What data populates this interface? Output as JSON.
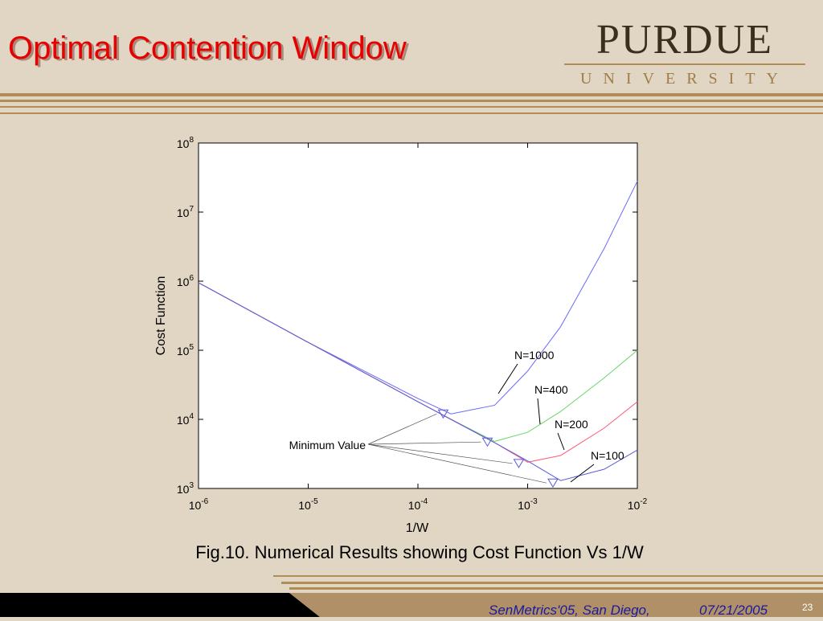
{
  "slide": {
    "title": "Optimal Contention Window",
    "logo": "PURDUE",
    "logo_sub": "UNIVERSITY",
    "footer": "SenMetrics'05, San Diego,",
    "date": "07/21/2005",
    "page": "23"
  },
  "chart_data": {
    "type": "line",
    "xlabel": "1/W",
    "ylabel": "Cost Function",
    "caption": "Fig.10. Numerical Results showing Cost Function Vs 1/W",
    "xscale": "log",
    "yscale": "log",
    "xlim": [
      1e-06,
      0.01
    ],
    "ylim": [
      1000,
      100000000
    ],
    "xticks": [
      {
        "value": 1e-06,
        "label": "10^-6"
      },
      {
        "value": 1e-05,
        "label": "10^-5"
      },
      {
        "value": 0.0001,
        "label": "10^-4"
      },
      {
        "value": 0.001,
        "label": "10^-3"
      },
      {
        "value": 0.01,
        "label": "10^-2"
      }
    ],
    "yticks": [
      {
        "value": 1000,
        "label": "10^3"
      },
      {
        "value": 10000,
        "label": "10^4"
      },
      {
        "value": 100000,
        "label": "10^5"
      },
      {
        "value": 1000000,
        "label": "10^6"
      },
      {
        "value": 10000000,
        "label": "10^7"
      },
      {
        "value": 100000000,
        "label": "10^8"
      }
    ],
    "x": [
      1e-06,
      1e-05,
      0.0001,
      0.0002,
      0.0005,
      0.001,
      0.002,
      0.005,
      0.01
    ],
    "series": [
      {
        "name": "N=1000",
        "color": "#6a6aff",
        "values": [
          950000,
          130000,
          20000,
          12000,
          16000,
          50000,
          220000,
          3000000,
          28000000
        ]
      },
      {
        "name": "N=400",
        "color": "#6ad66a",
        "values": [
          950000,
          130000,
          18000,
          10000,
          4800,
          6500,
          13000,
          40000,
          100000
        ]
      },
      {
        "name": "N=200",
        "color": "#ff5a78",
        "values": [
          950000,
          130000,
          18000,
          10000,
          4600,
          2400,
          3000,
          7500,
          18000
        ]
      },
      {
        "name": "N=100",
        "color": "#5a5ae0",
        "values": [
          950000,
          130000,
          18000,
          10000,
          4600,
          2500,
          1300,
          1900,
          3600
        ]
      }
    ],
    "minima": {
      "x": [
        0.00017,
        0.00043,
        0.00083,
        0.0017
      ],
      "y": [
        12000,
        4700,
        2300,
        1200
      ]
    },
    "annotation": "Minimum Value"
  }
}
